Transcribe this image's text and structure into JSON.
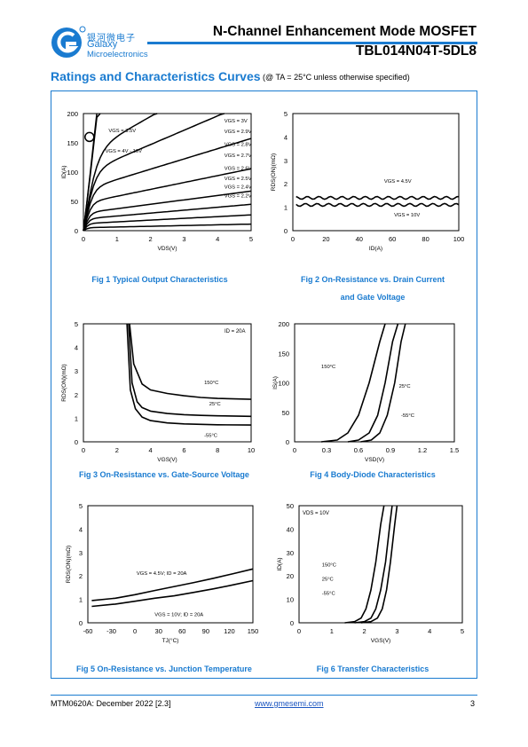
{
  "header": {
    "brand_cn": "银河微电子",
    "brand_name": "Galaxy",
    "brand_sub": "Microelectronics",
    "title": "N-Channel Enhancement Mode MOSFET",
    "part": "TBL014N04T-5DL8",
    "accent": "#1a7bd0"
  },
  "section": {
    "title": "Ratings and Characteristics Curves",
    "condition": "(@ TA = 25°C unless otherwise specified)"
  },
  "figures": {
    "fig1": {
      "caption": "Fig 1    Typical Output Characteristics"
    },
    "fig2": {
      "caption1": "Fig 2    On-Resistance vs. Drain Current",
      "caption2": "and Gate Voltage"
    },
    "fig3": {
      "caption": "Fig 3    On-Resistance vs. Gate-Source Voltage"
    },
    "fig4": {
      "caption": "Fig 4    Body-Diode Characteristics"
    },
    "fig5": {
      "caption": "Fig 5    On-Resistance vs. Junction Temperature"
    },
    "fig6": {
      "caption": "Fig 6    Transfer Characteristics"
    }
  },
  "chart_data": [
    {
      "id": "fig1",
      "type": "line",
      "xlabel": "VDS(V)",
      "ylabel": "ID(A)",
      "xlim": [
        0,
        5
      ],
      "ylim": [
        0,
        200
      ],
      "xticks": [
        0,
        1,
        2,
        3,
        4,
        5
      ],
      "yticks": [
        0,
        50,
        100,
        150,
        200
      ],
      "series": [
        {
          "name": "VGS = 2.2V",
          "sat": 5
        },
        {
          "name": "VGS = 2.4V",
          "sat": 12
        },
        {
          "name": "VGS = 2.5V",
          "sat": 20
        },
        {
          "name": "VGS = 2.6V",
          "sat": 30
        },
        {
          "name": "VGS = 2.7V",
          "sat": 47
        },
        {
          "name": "VGS = 2.8V",
          "sat": 70
        },
        {
          "name": "VGS = 2.9V",
          "sat": 98
        },
        {
          "name": "VGS = 3V",
          "sat": 130
        },
        {
          "name": "VGS = 3.5V",
          "sat": 800
        },
        {
          "name": "VGS = 4V - 10V",
          "sat": 1500
        }
      ]
    },
    {
      "id": "fig2",
      "type": "line",
      "xlabel": "ID(A)",
      "ylabel": "RDS(ON)(mΩ)",
      "xlim": [
        0,
        100
      ],
      "ylim": [
        0,
        5
      ],
      "xticks": [
        0,
        20,
        40,
        60,
        80,
        100
      ],
      "yticks": [
        0,
        1,
        2,
        3,
        4,
        5
      ],
      "series": [
        {
          "name": "VGS = 4.5V",
          "value": 1.4
        },
        {
          "name": "VGS = 10V",
          "value": 1.1
        }
      ]
    },
    {
      "id": "fig3",
      "type": "line",
      "xlabel": "VGS(V)",
      "ylabel": "RDS(ON)(mΩ)",
      "xlim": [
        0,
        10
      ],
      "ylim": [
        0,
        5
      ],
      "xticks": [
        0,
        2,
        4,
        6,
        8,
        10
      ],
      "yticks": [
        0,
        1,
        2,
        3,
        4,
        5
      ],
      "annotation": "ID = 20A",
      "series": [
        {
          "name": "150°C",
          "x": [
            2.75,
            3,
            3.5,
            4,
            5,
            6,
            7,
            8,
            10
          ],
          "y": [
            5,
            3.3,
            2.45,
            2.2,
            2.05,
            1.95,
            1.88,
            1.84,
            1.8
          ]
        },
        {
          "name": "25°C",
          "x": [
            2.7,
            2.9,
            3.2,
            3.5,
            4,
            5,
            6,
            7,
            8,
            10
          ],
          "y": [
            5,
            2.5,
            1.7,
            1.45,
            1.3,
            1.2,
            1.15,
            1.12,
            1.1,
            1.08
          ]
        },
        {
          "name": "-55°C",
          "x": [
            2.6,
            2.8,
            3.1,
            3.5,
            4,
            5,
            6,
            7,
            8,
            10
          ],
          "y": [
            5,
            2.2,
            1.4,
            1.05,
            0.9,
            0.8,
            0.76,
            0.74,
            0.72,
            0.71
          ]
        }
      ]
    },
    {
      "id": "fig4",
      "type": "line",
      "xlabel": "VSD(V)",
      "ylabel": "IS(A)",
      "xlim": [
        0,
        1.5
      ],
      "ylim": [
        0,
        200
      ],
      "xticks": [
        "0",
        "0.3",
        "0.6",
        "0.9",
        "1.2",
        "1.5"
      ],
      "yticks": [
        0,
        50,
        100,
        150,
        200
      ],
      "series": [
        {
          "name": "150°C",
          "x": [
            0.25,
            0.4,
            0.5,
            0.6,
            0.7,
            0.8,
            0.85
          ],
          "y": [
            0,
            3,
            15,
            45,
            100,
            170,
            200
          ]
        },
        {
          "name": "25°C",
          "x": [
            0.5,
            0.6,
            0.7,
            0.78,
            0.85,
            0.92,
            0.97
          ],
          "y": [
            0,
            3,
            15,
            45,
            100,
            170,
            200
          ]
        },
        {
          "name": "-55°C",
          "x": [
            0.62,
            0.72,
            0.8,
            0.87,
            0.94,
            1.0,
            1.04
          ],
          "y": [
            0,
            3,
            15,
            45,
            100,
            170,
            200
          ]
        }
      ]
    },
    {
      "id": "fig5",
      "type": "line",
      "xlabel": "TJ(°C)",
      "ylabel": "RDS(ON)(mΩ)",
      "xlim": [
        -60,
        150
      ],
      "ylim": [
        0,
        5
      ],
      "xticks": [
        -60,
        -30,
        0,
        30,
        60,
        90,
        120,
        150
      ],
      "yticks": [
        0,
        1,
        2,
        3,
        4,
        5
      ],
      "series": [
        {
          "name": "VGS = 4.5V; ID = 20A",
          "x": [
            -55,
            -25,
            0,
            25,
            50,
            75,
            100,
            125,
            150
          ],
          "y": [
            0.95,
            1.05,
            1.2,
            1.38,
            1.55,
            1.72,
            1.9,
            2.1,
            2.3
          ]
        },
        {
          "name": "VGS = 10V; ID = 20A",
          "x": [
            -55,
            -25,
            0,
            25,
            50,
            75,
            100,
            125,
            150
          ],
          "y": [
            0.7,
            0.8,
            0.92,
            1.05,
            1.15,
            1.3,
            1.45,
            1.62,
            1.8
          ]
        }
      ]
    },
    {
      "id": "fig6",
      "type": "line",
      "xlabel": "VGS(V)",
      "ylabel": "ID(A)",
      "xlim": [
        0,
        5
      ],
      "ylim": [
        0,
        50
      ],
      "xticks": [
        0,
        1,
        2,
        3,
        4,
        5
      ],
      "yticks": [
        0,
        10,
        20,
        30,
        40,
        50
      ],
      "annotation": "VDS = 10V",
      "series": [
        {
          "name": "150°C",
          "x": [
            1.4,
            1.7,
            1.9,
            2.05,
            2.2,
            2.35,
            2.5,
            2.6
          ],
          "y": [
            0,
            0.5,
            2,
            6,
            14,
            26,
            42,
            50
          ]
        },
        {
          "name": "25°C",
          "x": [
            1.7,
            2.0,
            2.2,
            2.35,
            2.5,
            2.65,
            2.78,
            2.85
          ],
          "y": [
            0,
            0.5,
            2,
            6,
            14,
            26,
            42,
            50
          ]
        },
        {
          "name": "-55°C",
          "x": [
            1.9,
            2.2,
            2.4,
            2.55,
            2.68,
            2.8,
            2.93,
            3.0
          ],
          "y": [
            0,
            0.5,
            2,
            6,
            14,
            26,
            42,
            50
          ]
        }
      ]
    }
  ],
  "footer": {
    "doc": "MTM0620A: December 2022 [2.3]",
    "url": "www.gmesemi.com",
    "page": "3"
  }
}
